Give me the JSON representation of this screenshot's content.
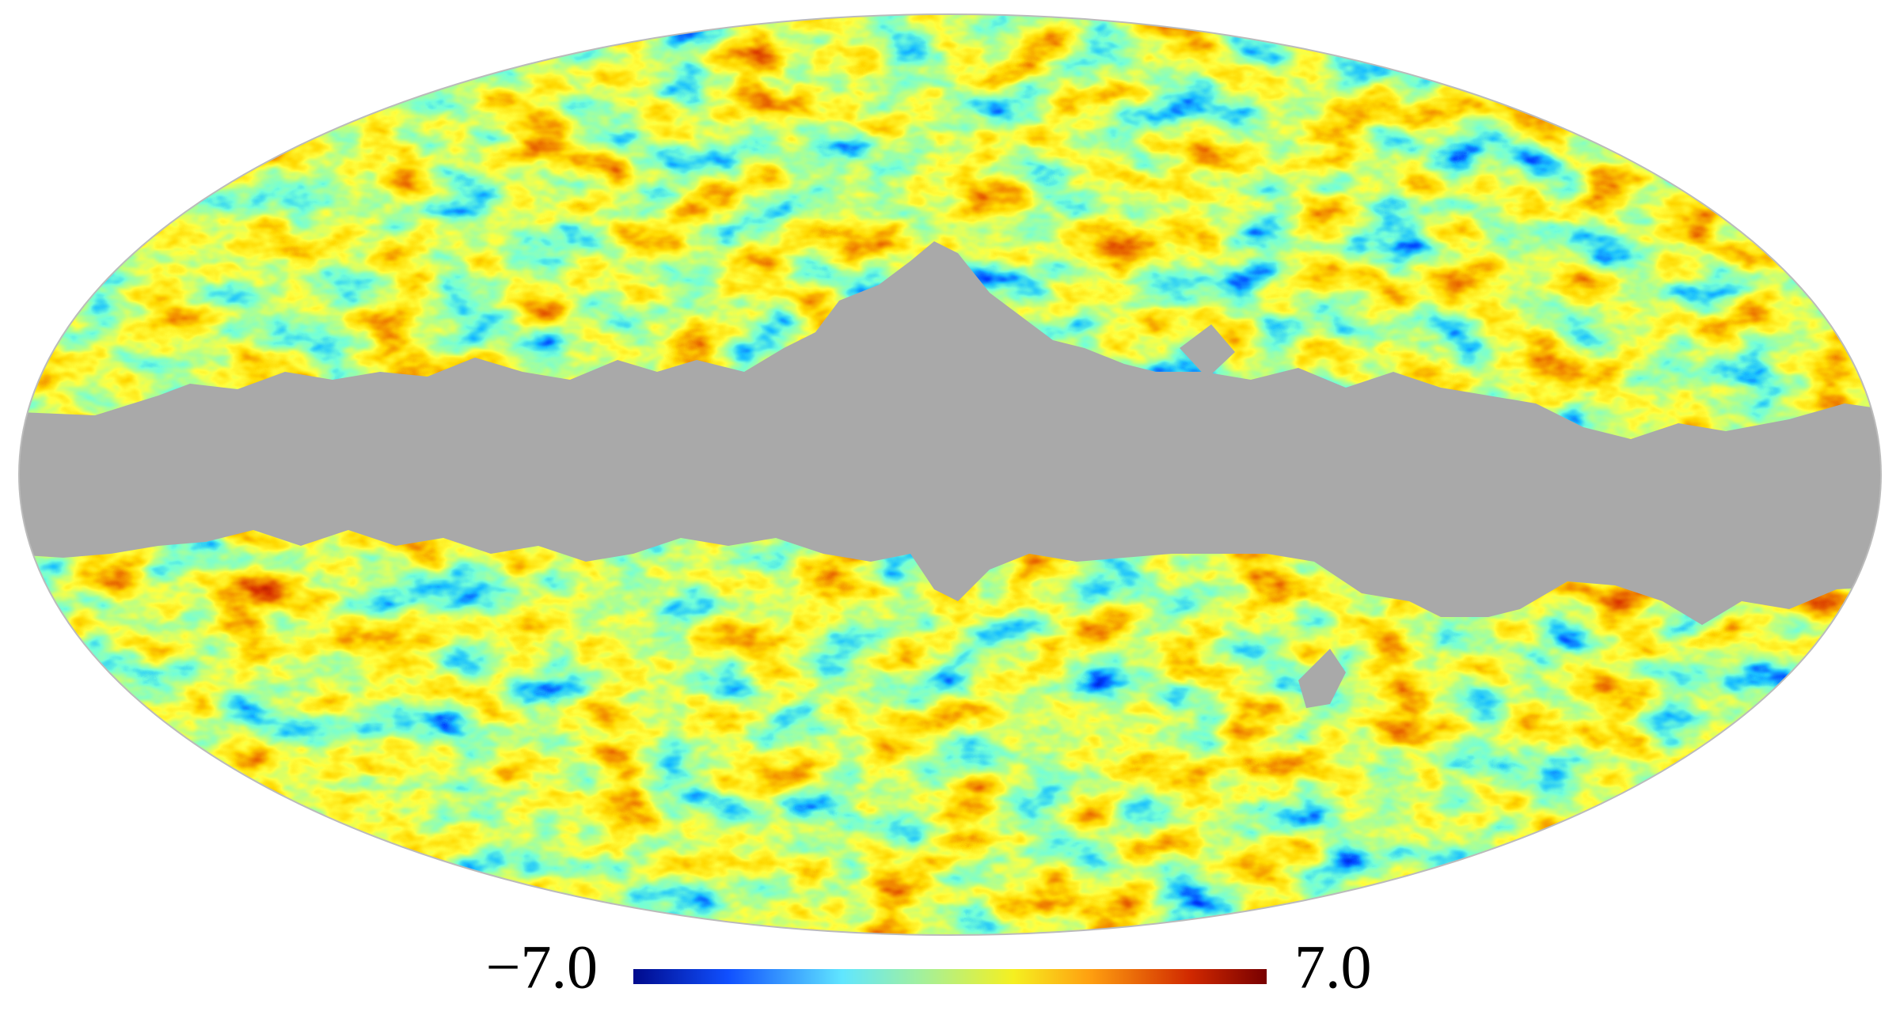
{
  "map": {
    "colorbar": {
      "min": {
        "value": -7,
        "label": "−7.0"
      },
      "max": {
        "value": 7,
        "label": "7.0"
      }
    }
  }
}
